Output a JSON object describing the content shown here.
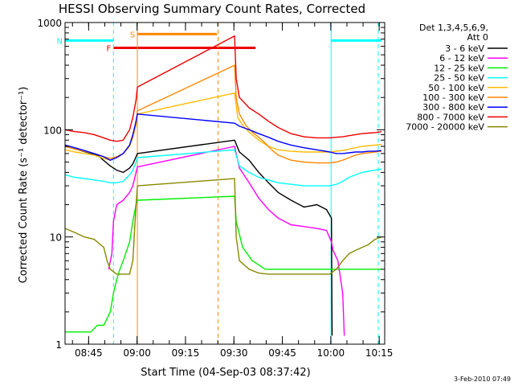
{
  "chart_data": {
    "type": "line",
    "title": "HESSI Observing Summary Count Rates, Corrected",
    "xlabel": "Start Time (04-Sep-03 08:37:42)",
    "ylabel": "Corrected Count Rate (s⁻¹ detector⁻¹)",
    "yscale": "log",
    "ylim": [
      1,
      1000
    ],
    "xlim_minutes_after_start": [
      0,
      99
    ],
    "yticks": [
      {
        "value": 1,
        "label": "1"
      },
      {
        "value": 10,
        "label": "10"
      },
      {
        "value": 100,
        "label": "100"
      },
      {
        "value": 1000,
        "label": "1000"
      }
    ],
    "xticks": [
      {
        "value": 7.3,
        "label": "08:45"
      },
      {
        "value": 22.3,
        "label": "09:00"
      },
      {
        "value": 37.3,
        "label": "09:15"
      },
      {
        "value": 52.3,
        "label": "09:30"
      },
      {
        "value": 67.3,
        "label": "09:45"
      },
      {
        "value": 82.3,
        "label": "10:00"
      },
      {
        "value": 97.3,
        "label": "10:15"
      }
    ],
    "legend_header": [
      "Det 1,3,4,5,6,9,",
      "Att 0"
    ],
    "legend_position": "right",
    "series": [
      {
        "name": "3 - 6 keV",
        "color": "#000000",
        "points": [
          [
            0,
            70
          ],
          [
            10,
            58
          ],
          [
            14,
            46
          ],
          [
            16,
            42
          ],
          [
            18,
            40
          ],
          [
            20,
            44
          ],
          [
            21,
            48
          ],
          [
            22,
            56
          ],
          [
            22.4,
            60
          ],
          [
            52.5,
            80
          ],
          [
            54,
            62
          ],
          [
            57,
            52
          ],
          [
            60,
            40
          ],
          [
            63,
            32
          ],
          [
            66,
            26
          ],
          [
            70,
            22
          ],
          [
            74,
            19
          ],
          [
            78,
            20
          ],
          [
            81,
            18
          ],
          [
            82.5,
            15
          ],
          [
            82.7,
            1.2
          ]
        ]
      },
      {
        "name": "6 - 12 keV",
        "color": "#ff00ff",
        "points": [
          [
            13.5,
            5
          ],
          [
            14.5,
            7
          ],
          [
            15,
            14
          ],
          [
            16,
            20
          ],
          [
            18,
            22
          ],
          [
            20,
            26
          ],
          [
            21,
            30
          ],
          [
            22,
            40
          ],
          [
            22.4,
            45
          ],
          [
            52.5,
            70
          ],
          [
            54,
            44
          ],
          [
            57,
            32
          ],
          [
            60,
            23
          ],
          [
            63,
            18
          ],
          [
            66,
            15
          ],
          [
            70,
            13
          ],
          [
            74,
            12.5
          ],
          [
            78,
            12
          ],
          [
            81,
            11.5
          ],
          [
            82.5,
            9
          ],
          [
            83,
            7.5
          ],
          [
            84.5,
            6
          ],
          [
            86,
            3
          ],
          [
            86.5,
            1.2
          ]
        ]
      },
      {
        "name": "12 - 25 keV",
        "color": "#00ee00",
        "points": [
          [
            0,
            1.3
          ],
          [
            4,
            1.3
          ],
          [
            8,
            1.3
          ],
          [
            10,
            1.5
          ],
          [
            12,
            1.5
          ],
          [
            14,
            2
          ],
          [
            15,
            3
          ],
          [
            16,
            4
          ],
          [
            17,
            5
          ],
          [
            18,
            6
          ],
          [
            20,
            9
          ],
          [
            21,
            14
          ],
          [
            22,
            20
          ],
          [
            22.4,
            22
          ],
          [
            52.5,
            24
          ],
          [
            53,
            14
          ],
          [
            55,
            8
          ],
          [
            58,
            6
          ],
          [
            62,
            5
          ],
          [
            66,
            5
          ],
          [
            70,
            5
          ],
          [
            74,
            5
          ],
          [
            78,
            5
          ],
          [
            82,
            5
          ],
          [
            84,
            5
          ],
          [
            88,
            5
          ],
          [
            92,
            5
          ],
          [
            96,
            5
          ],
          [
            98,
            5
          ]
        ]
      },
      {
        "name": "25 - 50 keV",
        "color": "#00ffff",
        "points": [
          [
            0,
            38
          ],
          [
            3,
            36
          ],
          [
            6,
            35
          ],
          [
            9,
            34
          ],
          [
            12,
            33
          ],
          [
            14,
            32
          ],
          [
            16,
            32
          ],
          [
            18,
            33
          ],
          [
            20,
            38
          ],
          [
            21,
            42
          ],
          [
            22,
            50
          ],
          [
            22.4,
            55
          ],
          [
            52.5,
            65
          ],
          [
            54,
            46
          ],
          [
            57,
            40
          ],
          [
            60,
            36
          ],
          [
            63,
            34
          ],
          [
            66,
            32
          ],
          [
            70,
            31
          ],
          [
            74,
            30
          ],
          [
            78,
            30
          ],
          [
            82,
            30
          ],
          [
            84,
            31
          ],
          [
            86,
            33
          ],
          [
            88,
            36
          ],
          [
            90,
            38
          ],
          [
            92,
            40
          ],
          [
            94,
            41
          ],
          [
            96,
            42
          ],
          [
            98,
            43
          ]
        ]
      },
      {
        "name": "50 - 100 keV",
        "color": "#ffbb00",
        "points": [
          [
            0,
            65
          ],
          [
            3,
            62
          ],
          [
            6,
            60
          ],
          [
            9,
            58
          ],
          [
            12,
            54
          ],
          [
            14,
            52
          ],
          [
            16,
            55
          ],
          [
            18,
            60
          ],
          [
            20,
            70
          ],
          [
            21,
            85
          ],
          [
            22,
            110
          ],
          [
            22.4,
            140
          ],
          [
            52.5,
            220
          ],
          [
            53.5,
            130
          ],
          [
            55,
            110
          ],
          [
            57,
            95
          ],
          [
            60,
            80
          ],
          [
            63,
            70
          ],
          [
            66,
            65
          ],
          [
            70,
            63
          ],
          [
            74,
            62
          ],
          [
            78,
            62
          ],
          [
            82,
            62
          ],
          [
            84,
            63
          ],
          [
            86,
            64
          ],
          [
            88,
            66
          ],
          [
            90,
            68
          ],
          [
            92,
            70
          ],
          [
            94,
            71
          ],
          [
            96,
            72
          ],
          [
            98,
            73
          ]
        ]
      },
      {
        "name": "100 - 300 keV",
        "color": "#ff8800",
        "points": [
          [
            0,
            70
          ],
          [
            3,
            66
          ],
          [
            6,
            63
          ],
          [
            9,
            60
          ],
          [
            12,
            56
          ],
          [
            14,
            54
          ],
          [
            16,
            56
          ],
          [
            18,
            60
          ],
          [
            20,
            72
          ],
          [
            21,
            85
          ],
          [
            22,
            120
          ],
          [
            22.4,
            150
          ],
          [
            52.5,
            400
          ],
          [
            53,
            200
          ],
          [
            54,
            140
          ],
          [
            56,
            110
          ],
          [
            58,
            95
          ],
          [
            60,
            85
          ],
          [
            62,
            75
          ],
          [
            64,
            65
          ],
          [
            66,
            58
          ],
          [
            70,
            52
          ],
          [
            74,
            50
          ],
          [
            78,
            49
          ],
          [
            82,
            49
          ],
          [
            84,
            50
          ],
          [
            86,
            52
          ],
          [
            88,
            55
          ],
          [
            90,
            58
          ],
          [
            92,
            60
          ],
          [
            94,
            61
          ],
          [
            96,
            62
          ],
          [
            98,
            63
          ]
        ]
      },
      {
        "name": "300 - 800 keV",
        "color": "#0000ff",
        "points": [
          [
            0,
            72
          ],
          [
            3,
            68
          ],
          [
            6,
            64
          ],
          [
            9,
            60
          ],
          [
            12,
            56
          ],
          [
            14,
            52
          ],
          [
            16,
            55
          ],
          [
            18,
            60
          ],
          [
            20,
            72
          ],
          [
            21,
            90
          ],
          [
            22,
            120
          ],
          [
            22.4,
            140
          ],
          [
            52.5,
            115
          ],
          [
            54,
            108
          ],
          [
            57,
            100
          ],
          [
            60,
            92
          ],
          [
            63,
            85
          ],
          [
            66,
            78
          ],
          [
            70,
            72
          ],
          [
            74,
            68
          ],
          [
            78,
            65
          ],
          [
            82,
            62
          ],
          [
            84,
            60
          ],
          [
            86,
            60
          ],
          [
            88,
            61
          ],
          [
            90,
            62
          ],
          [
            92,
            62
          ],
          [
            94,
            63
          ],
          [
            96,
            63
          ],
          [
            98,
            64
          ]
        ]
      },
      {
        "name": "800 - 7000 keV",
        "color": "#ee0000",
        "points": [
          [
            0,
            100
          ],
          [
            3,
            96
          ],
          [
            6,
            94
          ],
          [
            9,
            90
          ],
          [
            12,
            84
          ],
          [
            14,
            80
          ],
          [
            16,
            78
          ],
          [
            18,
            80
          ],
          [
            20,
            100
          ],
          [
            21,
            130
          ],
          [
            22,
            190
          ],
          [
            22.4,
            250
          ],
          [
            52.5,
            750
          ],
          [
            53,
            300
          ],
          [
            54,
            200
          ],
          [
            57,
            160
          ],
          [
            60,
            140
          ],
          [
            63,
            120
          ],
          [
            66,
            105
          ],
          [
            70,
            92
          ],
          [
            74,
            86
          ],
          [
            78,
            84
          ],
          [
            82,
            84
          ],
          [
            84,
            85
          ],
          [
            86,
            86
          ],
          [
            88,
            88
          ],
          [
            90,
            90
          ],
          [
            92,
            92
          ],
          [
            94,
            93
          ],
          [
            96,
            94
          ],
          [
            98,
            96
          ]
        ]
      },
      {
        "name": "7000 - 20000 keV",
        "color": "#888800",
        "points": [
          [
            0,
            12
          ],
          [
            3,
            11
          ],
          [
            6,
            10
          ],
          [
            9,
            9.5
          ],
          [
            12,
            8
          ],
          [
            13,
            6
          ],
          [
            14,
            5
          ],
          [
            16,
            4.5
          ],
          [
            18,
            4.5
          ],
          [
            20,
            4.5
          ],
          [
            21,
            6
          ],
          [
            22,
            20
          ],
          [
            22.4,
            30
          ],
          [
            52.5,
            35
          ],
          [
            53,
            10
          ],
          [
            54,
            6
          ],
          [
            57,
            5
          ],
          [
            60,
            4.6
          ],
          [
            63,
            4.5
          ],
          [
            66,
            4.5
          ],
          [
            70,
            4.5
          ],
          [
            74,
            4.5
          ],
          [
            78,
            4.5
          ],
          [
            82,
            4.5
          ],
          [
            84,
            5
          ],
          [
            86,
            6
          ],
          [
            88,
            7
          ],
          [
            90,
            7.5
          ],
          [
            92,
            8
          ],
          [
            94,
            8.5
          ],
          [
            96,
            9.5
          ],
          [
            98,
            10
          ]
        ]
      }
    ],
    "flags": [
      {
        "label": "F",
        "color": "#ee0000",
        "x_start": 15,
        "x_end": 59,
        "y": 580
      },
      {
        "label": "S",
        "color": "#ff8800",
        "x_start": 22.4,
        "x_end": 47,
        "y": 780
      },
      {
        "label": "N",
        "color": "#00ffff",
        "x_start": 0,
        "x_end": 15,
        "y": 680
      },
      {
        "label": "",
        "color": "#00ffff",
        "x_start": 82.4,
        "x_end": 98,
        "y": 680
      }
    ],
    "vlines": [
      {
        "x": 15,
        "color": "#00ffff",
        "style": "dashed"
      },
      {
        "x": 22.4,
        "color": "#ff8800",
        "style": "solid"
      },
      {
        "x": 47.4,
        "color": "#ff8800",
        "style": "dashed"
      },
      {
        "x": 82.4,
        "color": "#00ffff",
        "style": "solid"
      },
      {
        "x": 97,
        "color": "#00ffff",
        "style": "dashed"
      }
    ],
    "timestamp": "3-Feb-2010 07:49"
  }
}
